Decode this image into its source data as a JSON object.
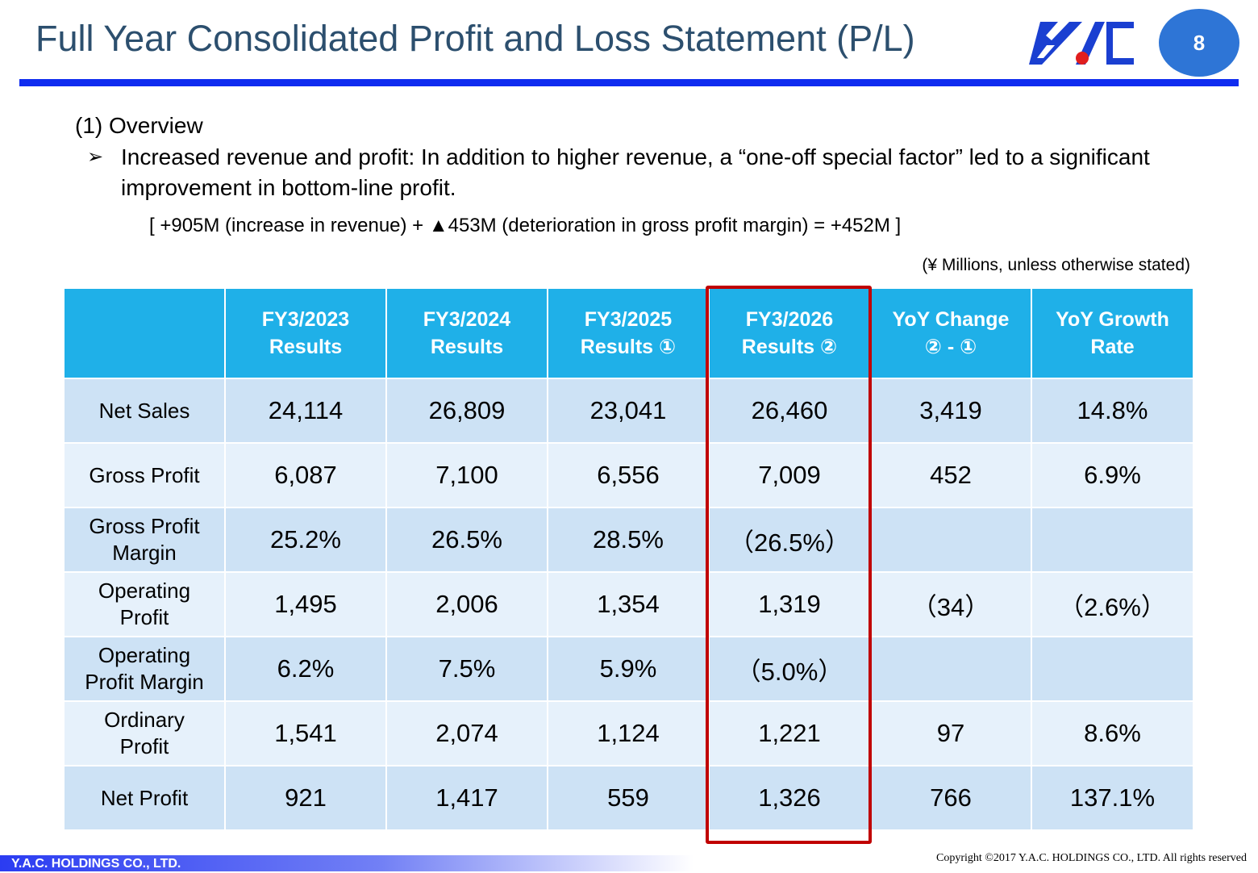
{
  "header": {
    "title": "Full Year Consolidated Profit and Loss Statement (P/L)",
    "page_number": "8",
    "logo_icon": "yac-logo-icon"
  },
  "overview": {
    "heading": "(1)  Overview",
    "bullet_icon": "arrow-bullet-icon",
    "bullet_text": "Increased revenue and profit: In addition to higher revenue, a “one-off special factor” led to a significant improvement in bottom-line profit.",
    "formula": "[ +905M (increase in revenue) + ▲453M (deterioration in gross profit margin) = +452M ]",
    "unit_note": "(¥ Millions, unless otherwise stated)"
  },
  "table": {
    "headers": [
      [
        "FY3/2023",
        "Results"
      ],
      [
        "FY3/2024",
        "Results"
      ],
      [
        "FY3/2025",
        "Results ①"
      ],
      [
        "FY3/2026",
        "Results ②"
      ],
      [
        "YoY Change",
        "② - ①"
      ],
      [
        "YoY Growth",
        "Rate"
      ]
    ],
    "rows": [
      {
        "label": [
          "Net Sales"
        ],
        "values": [
          "24,114",
          "26,809",
          "23,041",
          "26,460",
          "3,419",
          "14.8%"
        ]
      },
      {
        "label": [
          "Gross Profit"
        ],
        "values": [
          "6,087",
          "7,100",
          "6,556",
          "7,009",
          "452",
          "6.9%"
        ]
      },
      {
        "label": [
          "Gross Profit",
          "Margin"
        ],
        "values": [
          "25.2%",
          "26.5%",
          "28.5%",
          "（26.5%）",
          "",
          ""
        ]
      },
      {
        "label": [
          "Operating",
          "Profit"
        ],
        "values": [
          "1,495",
          "2,006",
          "1,354",
          "1,319",
          "（34）",
          "（2.6%）"
        ]
      },
      {
        "label": [
          "Operating",
          "Profit Margin"
        ],
        "values": [
          "6.2%",
          "7.5%",
          "5.9%",
          "（5.0%）",
          "",
          ""
        ]
      },
      {
        "label": [
          "Ordinary",
          "Profit"
        ],
        "values": [
          "1,541",
          "2,074",
          "1,124",
          "1,221",
          "97",
          "8.6%"
        ]
      },
      {
        "label": [
          "Net Profit"
        ],
        "values": [
          "921",
          "1,417",
          "559",
          "1,326",
          "766",
          "137.1%"
        ]
      }
    ],
    "highlight_color": "#c00000",
    "header_color": "#1fb0e8"
  },
  "footer": {
    "company": "Y.A.C. HOLDINGS CO., LTD.",
    "copyright": "Copyright ©2017 Y.A.C. HOLDINGS CO., LTD.  All rights reserved"
  }
}
